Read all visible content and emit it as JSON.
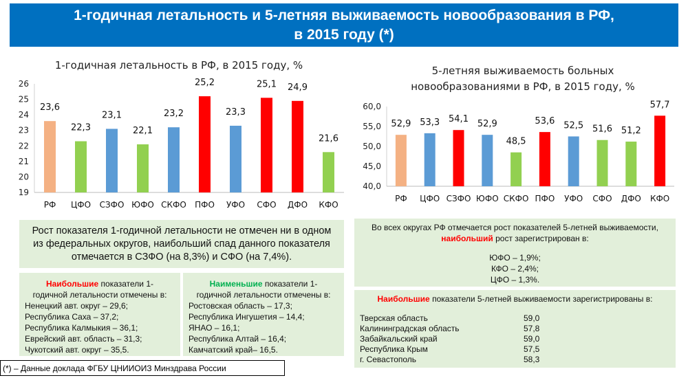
{
  "header": {
    "line1": "1-годичная летальность и 5-летняя выживаемость новообразования в РФ,",
    "line2": "в 2015 году (*)"
  },
  "colors": {
    "header": "#0070c0",
    "rf": "#f4b183",
    "green": "#92d050",
    "blue": "#5b9bd5",
    "red": "#ff0000",
    "box": "#e2efda"
  },
  "chart_data": [
    {
      "type": "bar",
      "title": "1-годичная летальность в РФ, в 2015 году, %",
      "categories": [
        "РФ",
        "ЦФО",
        "СЗФО",
        "ЮФО",
        "СКФО",
        "ПФО",
        "УФО",
        "СФО",
        "ДФО",
        "КФО"
      ],
      "values": [
        23.6,
        22.3,
        23.1,
        22.1,
        23.2,
        25.2,
        23.3,
        25.1,
        24.9,
        21.6
      ],
      "labels": [
        "23,6",
        "22,3",
        "23,1",
        "22,1",
        "23,2",
        "25,2",
        "23,3",
        "25,1",
        "24,9",
        "21,6"
      ],
      "bar_colors": [
        "rf",
        "green",
        "blue",
        "green",
        "blue",
        "red",
        "blue",
        "red",
        "red",
        "green"
      ],
      "ylim": [
        19,
        26
      ],
      "yticks": [
        "19",
        "20",
        "21",
        "22",
        "23",
        "24",
        "25",
        "26"
      ]
    },
    {
      "type": "bar",
      "title_lines": [
        "5-летняя выживаемость больных",
        "новообразованиями в РФ, в 2015 году, %"
      ],
      "categories": [
        "РФ",
        "ЦФО",
        "СЗФО",
        "ЮФО",
        "СКФО",
        "ПФО",
        "УФО",
        "СФО",
        "ДФО",
        "КФО"
      ],
      "values": [
        52.9,
        53.3,
        54.1,
        52.9,
        48.5,
        53.6,
        52.5,
        51.6,
        51.2,
        57.7
      ],
      "labels": [
        "52,9",
        "53,3",
        "54,1",
        "52,9",
        "48,5",
        "53,6",
        "52,5",
        "51,6",
        "51,2",
        "57,7"
      ],
      "bar_colors": [
        "rf",
        "blue",
        "red",
        "blue",
        "green",
        "red",
        "blue",
        "green",
        "green",
        "red"
      ],
      "ylim": [
        40,
        60
      ],
      "yticks": [
        "40,0",
        "45,0",
        "50,0",
        "55,0",
        "60,0"
      ]
    }
  ],
  "left_summary": "Рост показателя 1-годичной летальности не отмечен ни в одном из федеральных округов, наибольший спад данного показателя отмечается в СЗФО (на 8,3%) и СФО (на 7,4%).",
  "highest_lethality": {
    "emph": "Наибольшие",
    "rest": " показатели 1-годичной летальности отмечены в:",
    "items": [
      "Ненецкий авт. округ – 29,6;",
      "Республика Саха – 37,2;",
      "Республика Калмыкия – 36,1;",
      "Еврейский авт. область – 31,3;",
      "Чукотский авт. округ – 35,5."
    ]
  },
  "lowest_lethality": {
    "emph": "Наименьшие",
    "rest": " показатели 1-годичной летальности отмечены в:",
    "items": [
      "Ростовская область – 17,3;",
      "Республика Ингушетия – 14,4;",
      "ЯНАО – 16,1;",
      "Республика Алтай – 16,4;",
      "Камчатский край– 16,5."
    ]
  },
  "footnote": "(*) – Данные доклада ФГБУ ЦНИИОИЗ Минздрава России",
  "survival_growth": {
    "line1": "Во всех округах РФ отмечается рост показателей 5-летней выживаемости,",
    "emph": "наибольший",
    "rest": " рост зарегистрирован в:",
    "items": [
      "ЮФО – 1,9%;",
      "КФО – 2,4%;",
      "ЦФО – 1,3%."
    ]
  },
  "highest_survival": {
    "emph": "Наибольшие",
    "rest": " показатели 5-летней выживаемости зарегистрированы в:",
    "rows": [
      {
        "name": "Тверская область",
        "value": "59,0"
      },
      {
        "name": "Калининградская область",
        "value": "57,8"
      },
      {
        "name": "Забайкальский край",
        "value": "59,0"
      },
      {
        "name": "Республика Крым",
        "value": "57,5"
      },
      {
        "name": "г. Севастополь",
        "value": "58,3"
      }
    ]
  }
}
